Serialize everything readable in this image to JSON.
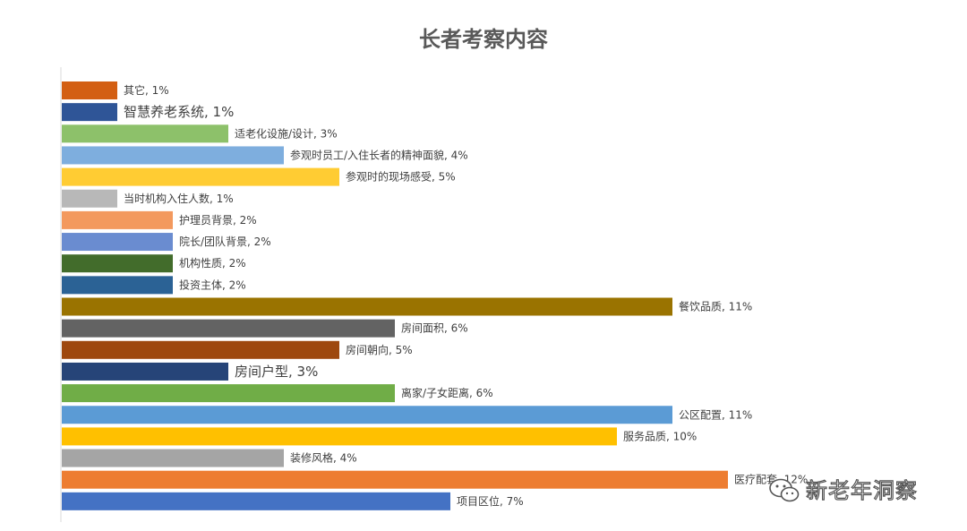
{
  "chart_data": {
    "type": "bar",
    "orientation": "horizontal",
    "title": "长者考察内容",
    "xlabel": "",
    "ylabel": "",
    "xlim": [
      0,
      13
    ],
    "grid": false,
    "legend": "none",
    "label_format": "{category}, {value}%",
    "categories": [
      "其它",
      "智慧养老系统",
      "适老化设施/设计",
      "参观时员工/入住长者的精神面貌",
      "参观时的现场感受",
      "当时机构入住人数",
      "护理员背景",
      "院长/团队背景",
      "机构性质",
      "投资主体",
      "餐饮品质",
      "房间面积",
      "房间朝向",
      "房间户型",
      "离家/子女距离",
      "公区配置",
      "服务品质",
      "装修风格",
      "医疗配套",
      "项目区位"
    ],
    "values": [
      1,
      1,
      3,
      4,
      5,
      1,
      2,
      2,
      2,
      2,
      11,
      6,
      5,
      3,
      6,
      11,
      10,
      4,
      12,
      7
    ],
    "colors": [
      "#D35F13",
      "#2F5597",
      "#8DC16A",
      "#7EAEDE",
      "#FFCC33",
      "#B8B8B8",
      "#F3995E",
      "#6A8CD0",
      "#426C2B",
      "#2B6295",
      "#9A7300",
      "#636363",
      "#9E480E",
      "#264478",
      "#70AD47",
      "#5B9BD5",
      "#FFC000",
      "#A5A5A5",
      "#ED7D31",
      "#4472C4"
    ],
    "data_labels": [
      "其它, 1%",
      "智慧养老系统, 1%",
      "适老化设施/设计, 3%",
      "参观时员工/入住长者的精神面貌, 4%",
      "参观时的现场感受, 5%",
      "当时机构入住人数, 1%",
      "护理员背景, 2%",
      "院长/团队背景, 2%",
      "机构性质, 2%",
      "投资主体, 2%",
      "餐饮品质, 11%",
      "房间面积, 6%",
      "房间朝向, 5%",
      "房间户型, 3%",
      "离家/子女距离, 6%",
      "公区配置, 11%",
      "服务品质, 10%",
      "装修风格, 4%",
      "医疗配套, 12%",
      "项目区位, 7%"
    ]
  },
  "watermark": {
    "text": "新老年洞察",
    "icon": "wechat-icon"
  }
}
